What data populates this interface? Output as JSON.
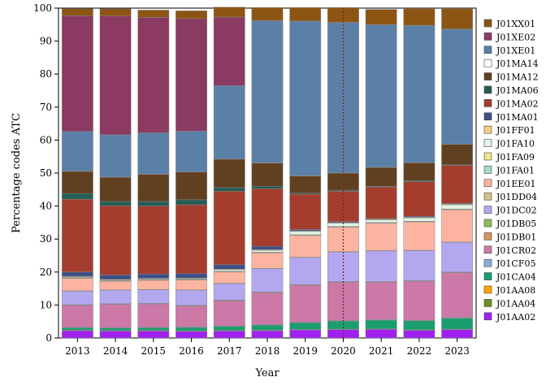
{
  "chart_data": {
    "type": "bar",
    "stacked": true,
    "title": "",
    "xlabel": "Year",
    "ylabel": "Percentage codes ATC",
    "ylim": [
      0,
      100
    ],
    "yticks": [
      0,
      10,
      20,
      30,
      40,
      50,
      60,
      70,
      80,
      90,
      100
    ],
    "grid": false,
    "legend_position": "right",
    "reference_line": {
      "x": "2020",
      "style": "dotted",
      "color": "#8B2020"
    },
    "categories": [
      "2013",
      "2014",
      "2015",
      "2016",
      "2017",
      "2018",
      "2019",
      "2020",
      "2021",
      "2022",
      "2023"
    ],
    "series": [
      {
        "name": "J01AA02",
        "color": "#a020f0",
        "values": [
          2.2,
          2.1,
          2.1,
          2.0,
          2.1,
          2.2,
          2.4,
          2.5,
          2.6,
          2.3,
          2.5
        ]
      },
      {
        "name": "J01AA04",
        "color": "#6b8e23",
        "values": [
          0.1,
          0.1,
          0.1,
          0.1,
          0.1,
          0.1,
          0.1,
          0.1,
          0.1,
          0.1,
          0.1
        ]
      },
      {
        "name": "J01AA08",
        "color": "#ffa500",
        "values": [
          0.1,
          0.1,
          0.1,
          0.1,
          0.1,
          0.1,
          0.1,
          0.1,
          0.1,
          0.1,
          0.1
        ]
      },
      {
        "name": "J01CA04",
        "color": "#1a9e6e",
        "values": [
          0.7,
          0.7,
          0.8,
          1.0,
          1.2,
          1.5,
          2.0,
          2.4,
          2.6,
          2.7,
          3.3
        ]
      },
      {
        "name": "J01CF05",
        "color": "#8aaed8",
        "values": [
          0.2,
          0.2,
          0.2,
          0.2,
          0.2,
          0.2,
          0.2,
          0.2,
          0.2,
          0.2,
          0.2
        ]
      },
      {
        "name": "J01CR02",
        "color": "#cc79a7",
        "values": [
          6.6,
          7.0,
          7.0,
          6.3,
          7.6,
          9.7,
          11.2,
          11.6,
          11.3,
          11.8,
          13.6
        ]
      },
      {
        "name": "J01DB01",
        "color": "#d4955b",
        "values": [
          0.1,
          0.1,
          0.1,
          0.1,
          0.1,
          0.1,
          0.1,
          0.1,
          0.1,
          0.1,
          0.1
        ]
      },
      {
        "name": "J01DB05",
        "color": "#8fbc5a",
        "values": [
          0.1,
          0.1,
          0.1,
          0.1,
          0.1,
          0.1,
          0.1,
          0.1,
          0.1,
          0.1,
          0.1
        ]
      },
      {
        "name": "J01DC02",
        "color": "#b3a8f0",
        "values": [
          4.1,
          4.1,
          4.1,
          4.6,
          5.0,
          7.0,
          8.2,
          9.0,
          9.3,
          9.1,
          9.0
        ]
      },
      {
        "name": "J01DD04",
        "color": "#cfc28a",
        "values": [
          0.1,
          0.1,
          0.1,
          0.1,
          0.1,
          0.1,
          0.1,
          0.1,
          0.1,
          0.1,
          0.1
        ]
      },
      {
        "name": "J01EE01",
        "color": "#fbb4a0",
        "values": [
          3.8,
          2.6,
          2.8,
          3.0,
          3.4,
          4.7,
          6.6,
          7.4,
          8.3,
          8.6,
          9.8
        ]
      },
      {
        "name": "J01FA01",
        "color": "#9fdcd0",
        "values": [
          0.1,
          0.1,
          0.1,
          0.1,
          0.1,
          0.1,
          0.1,
          0.1,
          0.1,
          0.1,
          0.1
        ]
      },
      {
        "name": "J01FA09",
        "color": "#f0e68c",
        "values": [
          0.1,
          0.1,
          0.1,
          0.1,
          0.1,
          0.1,
          0.1,
          0.1,
          0.1,
          0.1,
          0.1
        ]
      },
      {
        "name": "J01FA10",
        "color": "#e2f4e6",
        "values": [
          0.2,
          0.2,
          0.2,
          0.2,
          0.5,
          0.6,
          1.0,
          1.0,
          0.8,
          1.0,
          1.3
        ]
      },
      {
        "name": "J01FF01",
        "color": "#f7ce80",
        "values": [
          0.2,
          0.2,
          0.2,
          0.2,
          0.2,
          0.2,
          0.2,
          0.2,
          0.2,
          0.2,
          0.2
        ]
      },
      {
        "name": "J01MA01",
        "color": "#3d4f87",
        "values": [
          1.3,
          1.3,
          1.3,
          1.3,
          1.3,
          1.0,
          0.4,
          0.3,
          0.2,
          0.3,
          0.2
        ]
      },
      {
        "name": "J01MA02",
        "color": "#a43d2e",
        "values": [
          22.1,
          21.0,
          20.6,
          20.9,
          22.3,
          17.5,
          10.7,
          9.2,
          9.6,
          10.5,
          11.5
        ]
      },
      {
        "name": "J01MA06",
        "color": "#245d55",
        "values": [
          1.7,
          1.3,
          1.4,
          1.5,
          1.1,
          0.7,
          0.3,
          0.3,
          0.2,
          0.3,
          0.2
        ]
      },
      {
        "name": "J01MA12",
        "color": "#604020",
        "values": [
          6.7,
          7.3,
          8.2,
          8.4,
          8.6,
          7.0,
          5.2,
          5.2,
          5.7,
          5.4,
          6.2
        ]
      },
      {
        "name": "J01MA14",
        "color": "#ffffff",
        "values": [
          0.1,
          0.1,
          0.1,
          0.1,
          0.1,
          0.1,
          0.1,
          0.1,
          0.1,
          0.1,
          0.1
        ]
      },
      {
        "name": "J01XE01",
        "color": "#5b80a8",
        "values": [
          12.0,
          12.8,
          12.5,
          12.3,
          22.2,
          43.0,
          46.8,
          45.5,
          43.1,
          41.5,
          34.8
        ]
      },
      {
        "name": "J01XE02",
        "color": "#8b3a62",
        "values": [
          35.1,
          36.0,
          35.0,
          34.1,
          20.8,
          0.2,
          0.1,
          0.1,
          0.1,
          0.1,
          0.1
        ]
      },
      {
        "name": "J01XX01",
        "color": "#8c5514",
        "values": [
          2.1,
          2.2,
          2.2,
          2.4,
          3.0,
          3.9,
          4.1,
          4.5,
          4.6,
          5.1,
          6.2
        ]
      }
    ]
  }
}
